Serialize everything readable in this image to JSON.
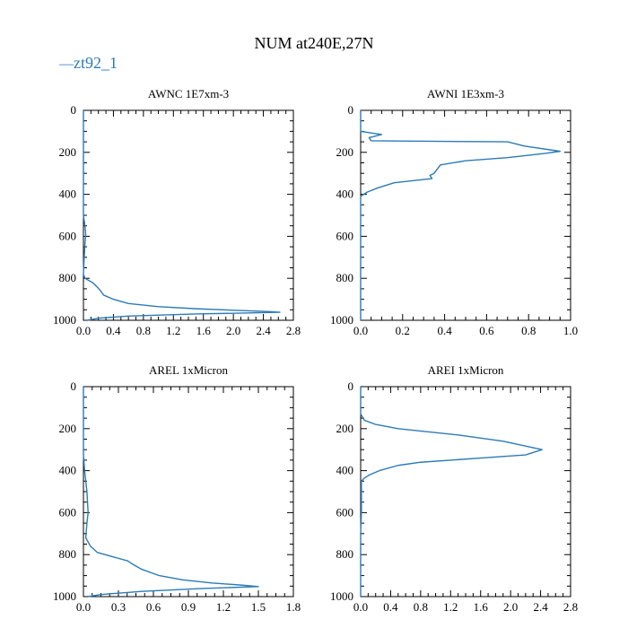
{
  "figure": {
    "title": "NUM at240E,27N",
    "legend": {
      "marker": "—",
      "label": "zt92_1",
      "color": "#2c7bb6",
      "placement": "top-left"
    },
    "line_color": "#2c7bb6"
  },
  "chart_data": [
    {
      "type": "line",
      "title": "AWNC  1E7xm-3",
      "xlim": [
        0,
        2.8
      ],
      "ylim": [
        1000,
        0
      ],
      "xticks": [
        0.0,
        0.4,
        0.8,
        1.2,
        1.6,
        2.0,
        2.4,
        2.8
      ],
      "xtick_labels": [
        "0.0",
        "0.4",
        "0.8",
        "1.2",
        "1.6",
        "2.0",
        "2.4",
        "2.8"
      ],
      "yticks": [
        0,
        200,
        400,
        600,
        800,
        1000
      ],
      "ytick_labels": [
        "0",
        "200",
        "400",
        "600",
        "800",
        "1000"
      ],
      "series": [
        {
          "name": "zt92_1",
          "x": [
            0,
            0,
            0.02,
            0.03,
            0.02,
            0.01,
            0,
            0.02,
            0.12,
            0.18,
            0.23,
            0.27,
            0.4,
            0.6,
            1.0,
            1.5,
            2.0,
            2.45,
            2.62,
            1.5,
            0.6,
            0.2,
            0.05
          ],
          "y": [
            0,
            500,
            550,
            590,
            640,
            700,
            780,
            800,
            820,
            840,
            860,
            880,
            900,
            920,
            935,
            945,
            952,
            958,
            962,
            970,
            980,
            990,
            1000
          ]
        }
      ]
    },
    {
      "type": "line",
      "title": "AWNI  1E3xm-3",
      "xlim": [
        0,
        1.0
      ],
      "ylim": [
        1000,
        0
      ],
      "xticks": [
        0.0,
        0.2,
        0.4,
        0.6,
        0.8,
        1.0
      ],
      "xtick_labels": [
        "0.0",
        "0.2",
        "0.4",
        "0.6",
        "0.8",
        "1.0"
      ],
      "yticks": [
        0,
        200,
        400,
        600,
        800,
        1000
      ],
      "ytick_labels": [
        "0",
        "200",
        "400",
        "600",
        "800",
        "1000"
      ],
      "series": [
        {
          "name": "zt92_1",
          "x": [
            0,
            0,
            0.1,
            0.04,
            0.05,
            0.7,
            0.78,
            0.95,
            0.88,
            0.7,
            0.5,
            0.38,
            0.35,
            0.33,
            0.34,
            0.16,
            0.08,
            0.03,
            0,
            0
          ],
          "y": [
            0,
            100,
            115,
            130,
            145,
            150,
            170,
            195,
            205,
            225,
            240,
            260,
            300,
            310,
            325,
            345,
            370,
            390,
            410,
            1000
          ]
        }
      ]
    },
    {
      "type": "line",
      "title": "AREL  1xMicron",
      "xlim": [
        0,
        1.8
      ],
      "ylim": [
        1000,
        0
      ],
      "xticks": [
        0.0,
        0.3,
        0.6,
        0.9,
        1.2,
        1.5,
        1.8
      ],
      "xtick_labels": [
        "0.0",
        "0.3",
        "0.6",
        "0.9",
        "1.2",
        "1.5",
        "1.8"
      ],
      "yticks": [
        0,
        200,
        400,
        600,
        800,
        1000
      ],
      "ytick_labels": [
        "0",
        "200",
        "400",
        "600",
        "800",
        "1000"
      ],
      "series": [
        {
          "name": "zt92_1",
          "x": [
            0,
            0,
            0.01,
            0.03,
            0.04,
            0.03,
            0.02,
            0.06,
            0.12,
            0.25,
            0.38,
            0.42,
            0.5,
            0.65,
            0.85,
            1.1,
            1.35,
            1.5,
            1.0,
            0.5,
            0.15,
            0.04
          ],
          "y": [
            0,
            320,
            400,
            500,
            600,
            650,
            720,
            760,
            790,
            810,
            830,
            845,
            870,
            900,
            920,
            935,
            945,
            952,
            962,
            975,
            990,
            1000
          ]
        }
      ]
    },
    {
      "type": "line",
      "title": "AREI  1xMicron",
      "xlim": [
        0,
        2.8
      ],
      "ylim": [
        1000,
        0
      ],
      "xticks": [
        0.0,
        0.4,
        0.8,
        1.2,
        1.6,
        2.0,
        2.4,
        2.8
      ],
      "xtick_labels": [
        "0.0",
        "0.4",
        "0.8",
        "1.2",
        "1.6",
        "2.0",
        "2.4",
        "2.8"
      ],
      "yticks": [
        0,
        200,
        400,
        600,
        800,
        1000
      ],
      "ytick_labels": [
        "0",
        "200",
        "400",
        "600",
        "800",
        "1000"
      ],
      "series": [
        {
          "name": "zt92_1",
          "x": [
            0,
            0,
            0.05,
            0.2,
            0.5,
            0.9,
            1.3,
            1.9,
            2.42,
            2.2,
            1.6,
            1.2,
            0.8,
            0.5,
            0.25,
            0.12,
            0.05,
            0.01,
            0.01,
            0,
            0
          ],
          "y": [
            0,
            130,
            160,
            180,
            200,
            215,
            230,
            260,
            300,
            325,
            340,
            350,
            360,
            375,
            400,
            420,
            435,
            450,
            600,
            700,
            1000
          ]
        }
      ]
    }
  ]
}
